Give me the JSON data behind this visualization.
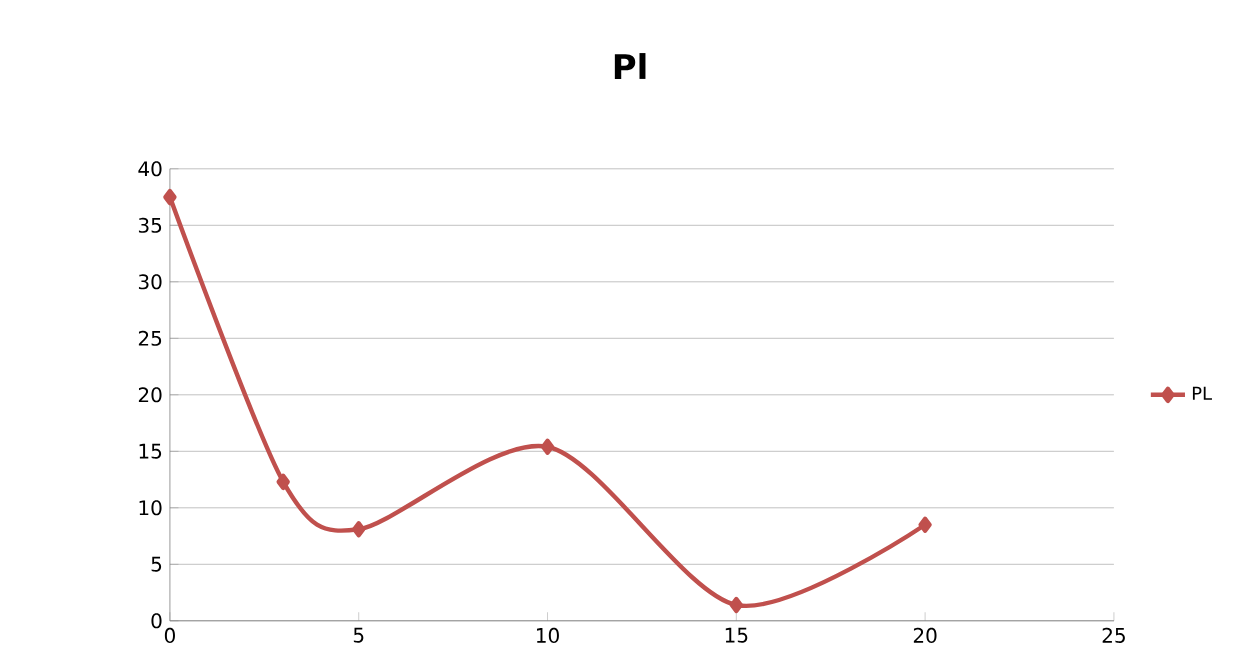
{
  "chart_data": {
    "type": "line",
    "title": "Pl",
    "x": [
      0,
      3,
      5,
      10,
      15,
      20
    ],
    "series": [
      {
        "name": "PL",
        "color": "#c0504d",
        "values": [
          37.5,
          12.3,
          8.1,
          15.4,
          1.4,
          8.5
        ]
      }
    ],
    "xlim": [
      0,
      25
    ],
    "xticks": [
      0,
      5,
      10,
      15,
      20,
      25
    ],
    "ylim": [
      0,
      40
    ],
    "yticks": [
      0,
      5,
      10,
      15,
      20,
      25,
      30,
      35,
      40
    ],
    "grid": "y",
    "legend": "right",
    "marker": "diamond",
    "line_style": "solid"
  }
}
